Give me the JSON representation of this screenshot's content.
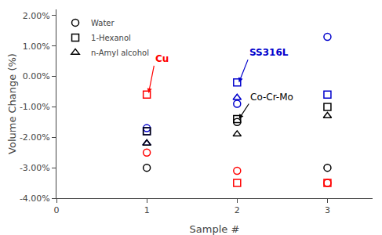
{
  "chart_data": {
    "type": "scatter",
    "xlabel": "Sample #",
    "ylabel": "Volume Change (%)",
    "xlim": [
      0,
      3.5
    ],
    "xticks": [
      0,
      1,
      2,
      3
    ],
    "ylim": [
      -0.04,
      0.022
    ],
    "yticks": [
      {
        "value": 0.02,
        "label": "2.00%"
      },
      {
        "value": 0.01,
        "label": "1.00%"
      },
      {
        "value": 0.0,
        "label": "0.00%"
      },
      {
        "value": -0.01,
        "label": "-1.00%"
      },
      {
        "value": -0.02,
        "label": "-2.00%"
      },
      {
        "value": -0.03,
        "label": "-3.00%"
      },
      {
        "value": -0.04,
        "label": "-4.00%"
      }
    ],
    "grid": false,
    "legend": "upper left",
    "x": [
      1,
      2,
      3,
      1,
      2,
      3,
      1,
      2,
      3
    ],
    "series": [
      {
        "name": "Water",
        "marker": "circle",
        "color": "#000000",
        "colors": [
          "#ff0000",
          "#ff0000",
          "#ff0000",
          "#0000cc",
          "#0000cc",
          "#0000cc",
          "#000000",
          "#000000",
          "#000000"
        ],
        "values": [
          -0.025,
          -0.031,
          -0.035,
          -0.017,
          -0.009,
          0.013,
          -0.03,
          -0.015,
          -0.03
        ]
      },
      {
        "name": "1-Hexanol",
        "marker": "square",
        "color": "#000000",
        "colors": [
          "#ff0000",
          "#ff0000",
          "#ff0000",
          "#0000cc",
          "#0000cc",
          "#0000cc",
          "#000000",
          "#000000",
          "#000000"
        ],
        "values": [
          -0.006,
          -0.035,
          -0.035,
          -0.018,
          -0.002,
          -0.006,
          -0.018,
          -0.014,
          -0.01
        ]
      },
      {
        "name": "n-Amyl alcohol",
        "marker": "triangle-up",
        "color": "#000000",
        "colors": [
          "#ff0000",
          "#ff0000",
          "#ff0000",
          "#0000cc",
          "#0000cc",
          "#0000cc",
          "#000000",
          "#000000",
          "#000000"
        ],
        "values": [
          null,
          null,
          null,
          -0.022,
          -0.007,
          null,
          -0.022,
          -0.019,
          -0.013
        ]
      }
    ],
    "annotations": [
      {
        "text": "Cu",
        "x": 1.02,
        "y": -0.0055,
        "text_x": 1.08,
        "text_y": 0.0035,
        "color": "#ff0000",
        "bold": true
      },
      {
        "text": "SS316L",
        "x": 2.02,
        "y": -0.002,
        "text_x": 2.12,
        "text_y": 0.0055,
        "color": "#0000cc",
        "bold": true
      },
      {
        "text": "Co-Cr-Mo",
        "x": 2.02,
        "y": -0.014,
        "text_x": 2.13,
        "text_y": -0.009,
        "color": "#000000",
        "bold": false
      }
    ]
  }
}
